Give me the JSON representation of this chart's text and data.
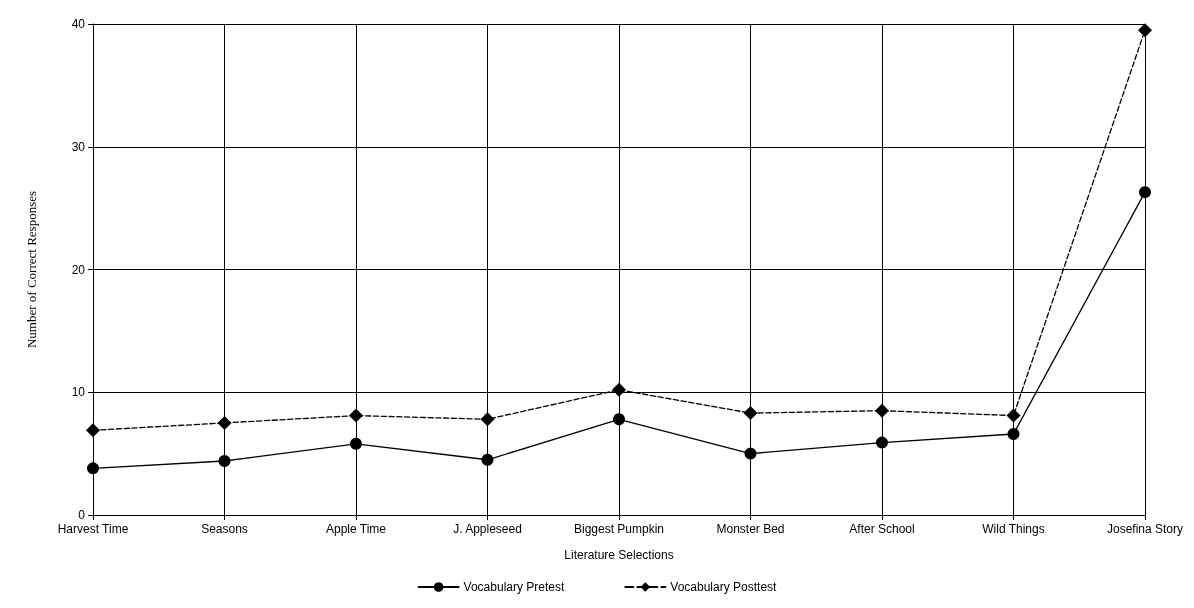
{
  "chart_data": {
    "type": "line",
    "xlabel": "Literature Selections",
    "ylabel": "Number of Correct Responses",
    "categories": [
      "Harvest Time",
      "Seasons",
      "Apple Time",
      "J. Appleseed",
      "Biggest Pumpkin",
      "Monster Bed",
      "After School",
      "Wild Things",
      "Josefina Story"
    ],
    "series": [
      {
        "name": "Vocabulary Pretest",
        "color": "#000000",
        "marker": "circle",
        "line_style": "solid",
        "values": [
          3.8,
          4.4,
          5.8,
          4.5,
          7.8,
          5.0,
          5.9,
          6.6,
          26.3
        ]
      },
      {
        "name": "Vocabulary Posttest",
        "color": "#000000",
        "marker": "diamond",
        "line_style": "dashed",
        "values": [
          6.9,
          7.5,
          8.1,
          7.8,
          10.2,
          8.3,
          8.5,
          8.1,
          39.5
        ]
      }
    ],
    "ylim": [
      0,
      40
    ],
    "yticks": [
      0,
      10,
      20,
      30,
      40
    ],
    "grid": true,
    "legend": "bottom"
  }
}
